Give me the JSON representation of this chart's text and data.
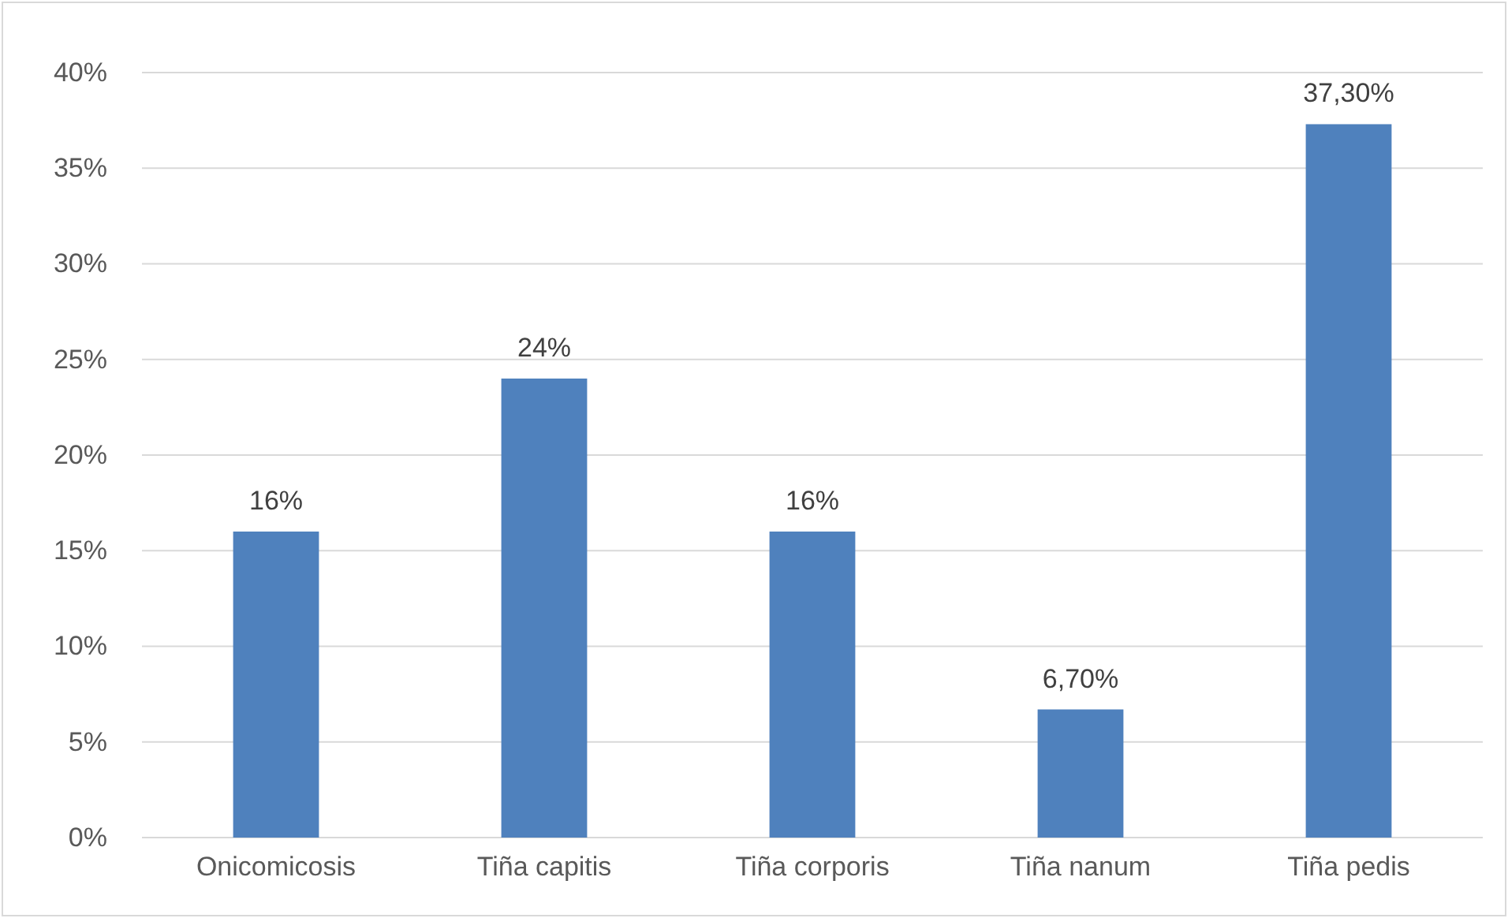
{
  "chart_data": {
    "type": "bar",
    "categories": [
      "Onicomicosis",
      "Tiña capitis",
      "Tiña corporis",
      "Tiña nanum",
      "Tiña pedis"
    ],
    "values": [
      16,
      24,
      16,
      6.7,
      37.3
    ],
    "color": "#4f81bd",
    "value_labels": [
      "16%",
      "24%",
      "16%",
      "6,70%",
      "37,30%"
    ],
    "ylim": [
      0,
      40
    ],
    "yticks": [
      {
        "value": 0,
        "label": "0%"
      },
      {
        "value": 5,
        "label": "5%"
      },
      {
        "value": 10,
        "label": "10%"
      },
      {
        "value": 15,
        "label": "15%"
      },
      {
        "value": 20,
        "label": "20%"
      },
      {
        "value": 25,
        "label": "25%"
      },
      {
        "value": 30,
        "label": "30%"
      },
      {
        "value": 35,
        "label": "35%"
      },
      {
        "value": 40,
        "label": "40%"
      }
    ],
    "grid": "y"
  }
}
